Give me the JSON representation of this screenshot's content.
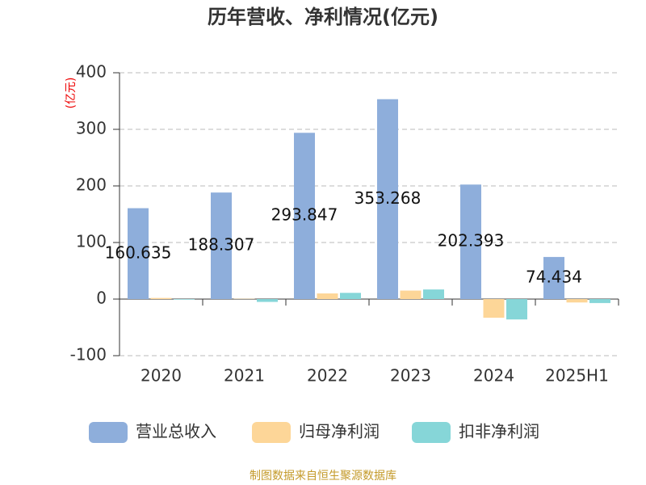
{
  "chart_data": {
    "type": "bar",
    "title": "历年营收、净利情况(亿元)",
    "y_label": "(亿元)",
    "categories": [
      "2020",
      "2021",
      "2022",
      "2023",
      "2024",
      "2025H1"
    ],
    "series": [
      {
        "name": "营业总收入",
        "color": "#8eaedb",
        "values": [
          160.635,
          188.307,
          293.847,
          353.268,
          202.393,
          74.434
        ],
        "show_labels": true
      },
      {
        "name": "归母净利润",
        "color": "#fdd698",
        "values": [
          2,
          0.5,
          10,
          15,
          -33,
          -6
        ]
      },
      {
        "name": "扣非净利润",
        "color": "#86d6d8",
        "values": [
          -1,
          -5,
          11,
          17,
          -36,
          -7
        ]
      }
    ],
    "ylim": [
      -100,
      400
    ],
    "yticks": [
      -100,
      0,
      100,
      200,
      300,
      400
    ],
    "grid": true,
    "source": "制图数据来自恒生聚源数据库"
  }
}
